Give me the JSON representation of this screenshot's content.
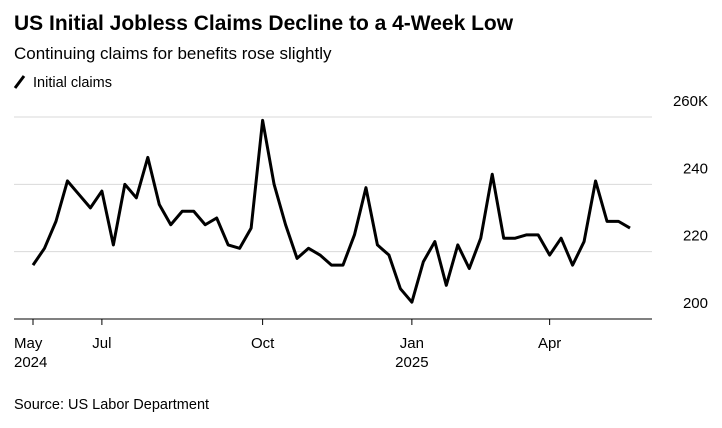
{
  "chart_data": {
    "type": "line",
    "title": "US Initial Jobless Claims Decline to a 4-Week Low",
    "subtitle": "Continuing claims for benefits rose slightly",
    "source": "Source: US Labor Department",
    "categories": [
      "May",
      null,
      null,
      null,
      null,
      null,
      "Jul",
      null,
      null,
      null,
      null,
      null,
      null,
      null,
      null,
      null,
      null,
      null,
      null,
      null,
      "Oct",
      null,
      null,
      null,
      null,
      null,
      null,
      null,
      null,
      null,
      null,
      null,
      null,
      "Jan",
      null,
      null,
      null,
      null,
      null,
      null,
      null,
      null,
      null,
      null,
      null,
      "Apr",
      null,
      null,
      null,
      null,
      null,
      null,
      null
    ],
    "category_years": [
      "2024",
      null,
      null,
      null,
      null,
      null,
      null,
      null,
      null,
      null,
      null,
      null,
      null,
      null,
      null,
      null,
      null,
      null,
      null,
      null,
      null,
      null,
      null,
      null,
      null,
      null,
      null,
      null,
      null,
      null,
      null,
      null,
      null,
      "2025",
      null,
      null,
      null,
      null,
      null,
      null,
      null,
      null,
      null,
      null,
      null,
      null,
      null,
      null,
      null,
      null,
      null,
      null,
      null
    ],
    "series": [
      {
        "name": "Initial claims",
        "color": "#000000",
        "values": [
          216,
          221,
          229,
          241,
          237,
          233,
          238,
          222,
          240,
          236,
          248,
          234,
          228,
          232,
          232,
          228,
          230,
          222,
          221,
          227,
          259,
          240,
          228,
          218,
          221,
          219,
          216,
          216,
          225,
          239,
          222,
          219,
          209,
          205,
          217,
          223,
          210,
          222,
          215,
          224,
          243,
          224,
          224,
          225,
          225,
          219,
          224,
          216,
          223,
          241,
          229,
          229,
          227
        ]
      }
    ],
    "ylim": [
      200,
      260
    ],
    "yticks": [
      200,
      220,
      240,
      {
        "value": 260,
        "label": "260K"
      }
    ],
    "grid": true
  }
}
